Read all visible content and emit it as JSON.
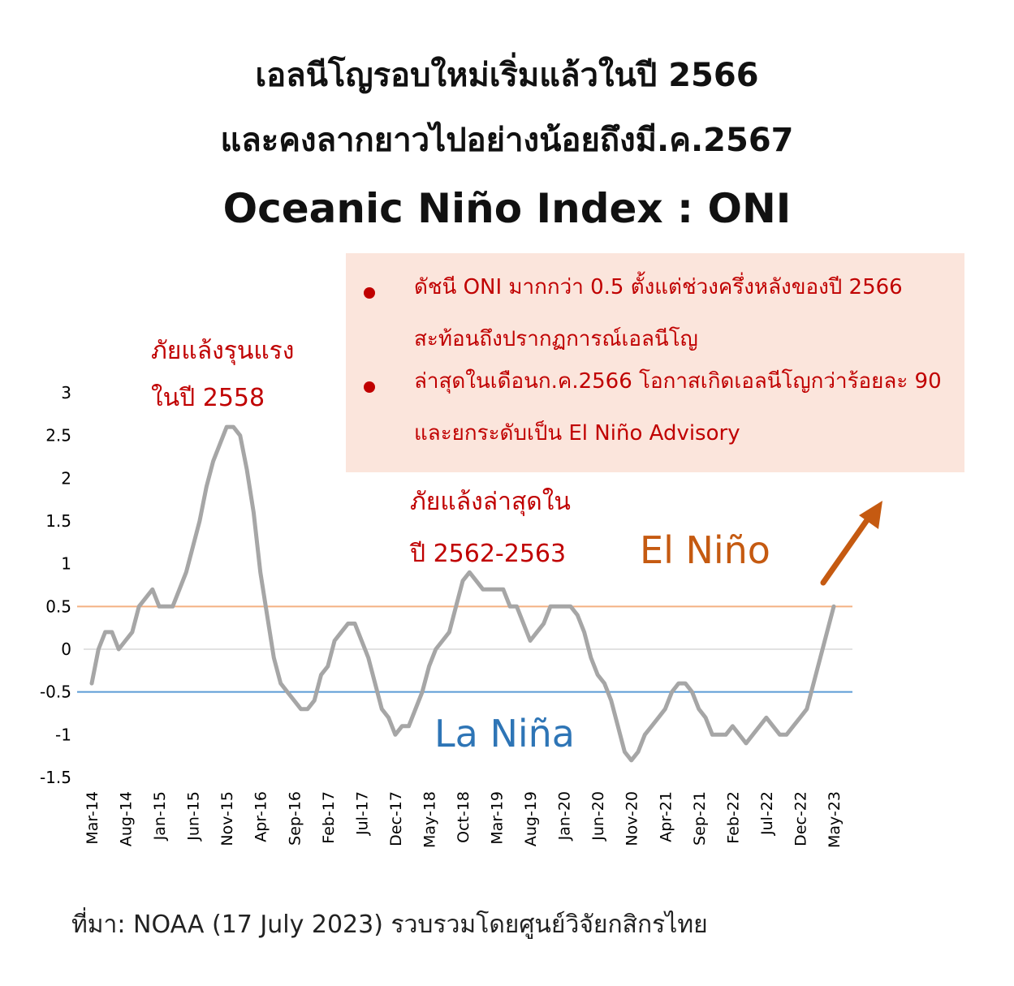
{
  "header": {
    "title_line1": "เอลนีโญรอบใหม่เริ่มแล้วในปี 2566",
    "title_line2": "และคงลากยาวไปอย่างน้อยถึงมี.ค.2567",
    "subtitle": "Oceanic Niño Index : ONI"
  },
  "info_box": {
    "bullets": [
      "ดัชนี ONI  มากกว่า 0.5 ตั้งแต่ช่วงครึ่งหลังของปี 2566 สะท้อนถึงปรากฏการณ์เอลนีโญ",
      "ล่าสุดในเดือนก.ค.2566 โอกาสเกิดเอลนีโญกว่าร้อยละ 90 และยกระดับเป็น El Niño Advisory"
    ]
  },
  "annotations": {
    "drought_2558": [
      "ภัยแล้งรุนแรง",
      "ในปี 2558"
    ],
    "drought_2562": [
      "ภัยแล้งล่าสุดใน",
      "ปี 2562-2563"
    ],
    "el_nino": "El Niño",
    "la_nina": "La Niña"
  },
  "source": "ที่มา: NOAA (17 July 2023) รวบรวมโดยศูนย์วิจัยกสิกรไทย",
  "colors": {
    "series": "#a6a6a6",
    "el_nino": "#c55a11",
    "el_nino_line": "#f4b183",
    "la_nina": "#2e75b6",
    "la_nina_line": "#5b9bd5",
    "annotation_red": "#c00000",
    "info_box_bg": "#fbe5dc"
  },
  "chart_data": {
    "type": "line",
    "x": [
      "Mar-14",
      "Apr-14",
      "May-14",
      "Jun-14",
      "Jul-14",
      "Aug-14",
      "Sep-14",
      "Oct-14",
      "Nov-14",
      "Dec-14",
      "Jan-15",
      "Feb-15",
      "Mar-15",
      "Apr-15",
      "May-15",
      "Jun-15",
      "Jul-15",
      "Aug-15",
      "Sep-15",
      "Oct-15",
      "Nov-15",
      "Dec-15",
      "Jan-16",
      "Feb-16",
      "Mar-16",
      "Apr-16",
      "May-16",
      "Jun-16",
      "Jul-16",
      "Aug-16",
      "Sep-16",
      "Oct-16",
      "Nov-16",
      "Dec-16",
      "Jan-17",
      "Feb-17",
      "Mar-17",
      "Apr-17",
      "May-17",
      "Jun-17",
      "Jul-17",
      "Aug-17",
      "Sep-17",
      "Oct-17",
      "Nov-17",
      "Dec-17",
      "Jan-18",
      "Feb-18",
      "Mar-18",
      "Apr-18",
      "May-18",
      "Jun-18",
      "Jul-18",
      "Aug-18",
      "Sep-18",
      "Oct-18",
      "Nov-18",
      "Dec-18",
      "Jan-19",
      "Feb-19",
      "Mar-19",
      "Apr-19",
      "May-19",
      "Jun-19",
      "Jul-19",
      "Aug-19",
      "Sep-19",
      "Oct-19",
      "Nov-19",
      "Dec-19",
      "Jan-20",
      "Feb-20",
      "Mar-20",
      "Apr-20",
      "May-20",
      "Jun-20",
      "Jul-20",
      "Aug-20",
      "Sep-20",
      "Oct-20",
      "Nov-20",
      "Dec-20",
      "Jan-21",
      "Feb-21",
      "Mar-21",
      "Apr-21",
      "May-21",
      "Jun-21",
      "Jul-21",
      "Aug-21",
      "Sep-21",
      "Oct-21",
      "Nov-21",
      "Dec-21",
      "Jan-22",
      "Feb-22",
      "Mar-22",
      "Apr-22",
      "May-22",
      "Jun-22",
      "Jul-22",
      "Aug-22",
      "Sep-22",
      "Oct-22",
      "Nov-22",
      "Dec-22",
      "Jan-23",
      "Feb-23",
      "Mar-23",
      "Apr-23",
      "May-23"
    ],
    "x_tick_labels": [
      "Mar-14",
      "Aug-14",
      "Jan-15",
      "Jun-15",
      "Nov-15",
      "Apr-16",
      "Sep-16",
      "Feb-17",
      "Jul-17",
      "Dec-17",
      "May-18",
      "Oct-18",
      "Mar-19",
      "Aug-19",
      "Jan-20",
      "Jun-20",
      "Nov-20",
      "Apr-21",
      "Sep-21",
      "Feb-22",
      "Jul-22",
      "Dec-22",
      "May-23"
    ],
    "series": [
      {
        "values": [
          -0.4,
          0.0,
          0.2,
          0.2,
          0.0,
          0.1,
          0.2,
          0.5,
          0.6,
          0.7,
          0.5,
          0.5,
          0.5,
          0.7,
          0.9,
          1.2,
          1.5,
          1.9,
          2.2,
          2.4,
          2.6,
          2.6,
          2.5,
          2.1,
          1.6,
          0.9,
          0.4,
          -0.1,
          -0.4,
          -0.5,
          -0.6,
          -0.7,
          -0.7,
          -0.6,
          -0.3,
          -0.2,
          0.1,
          0.2,
          0.3,
          0.3,
          0.1,
          -0.1,
          -0.4,
          -0.7,
          -0.8,
          -1.0,
          -0.9,
          -0.9,
          -0.7,
          -0.5,
          -0.2,
          0.0,
          0.1,
          0.2,
          0.5,
          0.8,
          0.9,
          0.8,
          0.7,
          0.7,
          0.7,
          0.7,
          0.5,
          0.5,
          0.3,
          0.1,
          0.2,
          0.3,
          0.5,
          0.5,
          0.5,
          0.5,
          0.4,
          0.2,
          -0.1,
          -0.3,
          -0.4,
          -0.6,
          -0.9,
          -1.2,
          -1.3,
          -1.2,
          -1.0,
          -0.9,
          -0.8,
          -0.7,
          -0.5,
          -0.4,
          -0.4,
          -0.5,
          -0.7,
          -0.8,
          -1.0,
          -1.0,
          -1.0,
          -0.9,
          -1.0,
          -1.1,
          -1.0,
          -0.9,
          -0.8,
          -0.9,
          -1.0,
          -1.0,
          -0.9,
          -0.8,
          -0.7,
          -0.4,
          -0.1,
          0.2,
          0.5
        ]
      }
    ],
    "yticks": [
      3,
      2.5,
      2,
      1.5,
      1,
      0.5,
      0,
      -0.5,
      -1,
      -1.5
    ],
    "ylim": [
      -1.5,
      3
    ],
    "reference_lines": [
      0.5,
      -0.5
    ],
    "grid": false,
    "legend": "none"
  }
}
